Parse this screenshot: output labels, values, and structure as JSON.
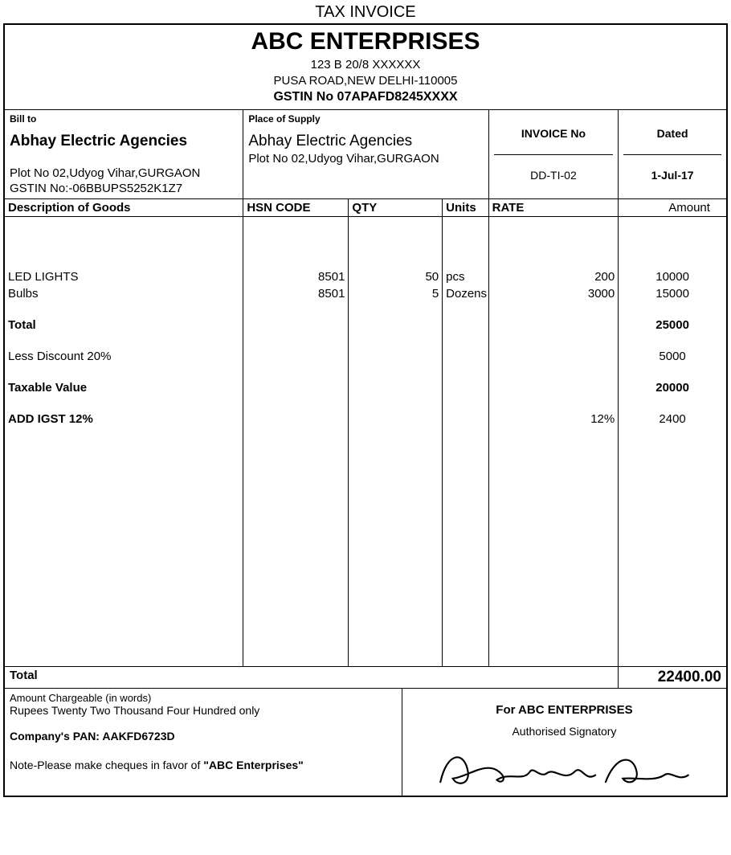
{
  "doc_title": "TAX INVOICE",
  "seller": {
    "name": "ABC ENTERPRISES",
    "addr1": "123 B 20/8 XXXXXX",
    "addr2": "PUSA ROAD,NEW DELHI-110005",
    "gstin_label": "GSTIN No 07APAFD8245XXXX"
  },
  "labels": {
    "bill_to": "Bill to",
    "place_of_supply": "Place of Supply",
    "invoice_no": "INVOICE No",
    "dated": "Dated",
    "desc": "Description of Goods",
    "hsn": "HSN CODE",
    "qty": "QTY",
    "units": "Units",
    "rate": "RATE",
    "amount": "Amount",
    "total_row": "Total",
    "words_label": "Amount Chargeable (in words)",
    "for_prefix": "For ABC ENTERPRISES",
    "auth_sig": "Authorised Signatory"
  },
  "bill_to": {
    "name": "Abhay Electric Agencies",
    "addr": "Plot No 02,Udyog Vihar,GURGAON",
    "gstin": "GSTIN No:-06BBUPS5252K1Z7"
  },
  "supply": {
    "name": "Abhay Electric Agencies",
    "addr": "Plot No 02,Udyog Vihar,GURGAON"
  },
  "invoice_no_value": "DD-TI-02",
  "dated_value": "1-Jul-17",
  "items": [
    {
      "desc": "LED LIGHTS",
      "hsn": "8501",
      "qty": "50",
      "units": "pcs",
      "rate": "200",
      "amount": "10000"
    },
    {
      "desc": "Bulbs",
      "hsn": "8501",
      "qty": "5",
      "units": "Dozens",
      "rate": "3000",
      "amount": "15000"
    }
  ],
  "summary": {
    "total_label": "Total",
    "total_amount": "25000",
    "discount_label": "Less Discount 20%",
    "discount_amount": "5000",
    "taxable_label": "Taxable Value",
    "taxable_amount": "20000",
    "igst_label": "ADD IGST 12%",
    "igst_rate": "12%",
    "igst_amount": "2400"
  },
  "grand_total": "22400.00",
  "amount_in_words": "Rupees Twenty Two Thousand Four Hundred only",
  "company_pan": "Company's PAN: AAKFD6723D",
  "note": "Note-Please make cheques in favor of \"ABC Enterprises\""
}
